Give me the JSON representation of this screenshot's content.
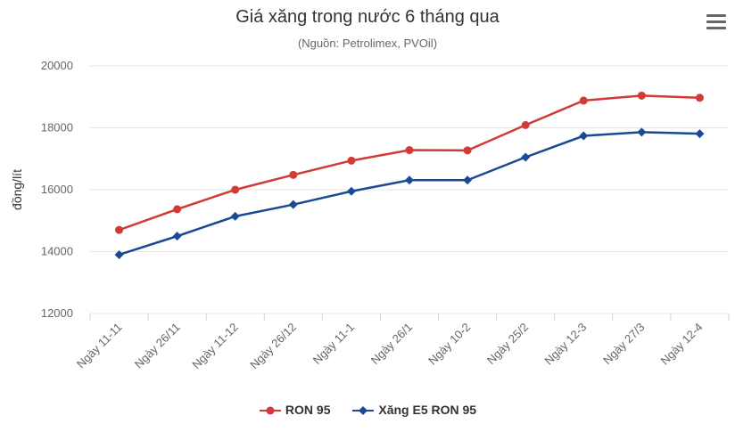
{
  "title": "Giá xăng trong nước 6 tháng qua",
  "subtitle": "(Nguồn: Petrolimex, PVOil)",
  "menu_icon": "hamburger-menu-icon",
  "colors": {
    "ron95": "#d03a37",
    "e5": "#1a4a95",
    "grid": "#e6e6e6",
    "axis_text": "#666666"
  },
  "chart_data": {
    "type": "line",
    "title": "Giá xăng trong nước 6 tháng qua",
    "subtitle": "(Nguồn: Petrolimex, PVOil)",
    "ylabel": "đồng/lít",
    "xlabel": "",
    "ylim": [
      12000,
      20000
    ],
    "yticks": [
      12000,
      14000,
      16000,
      18000,
      20000
    ],
    "grid": true,
    "legend_position": "bottom",
    "categories": [
      "Ngày 11-11",
      "Ngày 26/11",
      "Ngày 11-12",
      "Ngày 26/12",
      "Ngày 11-1",
      "Ngày 26/1",
      "Ngày 10-2",
      "Ngày 25/2",
      "Ngày 12-3",
      "Ngày 27/3",
      "Ngày 12-4"
    ],
    "series": [
      {
        "name": "RON 95",
        "marker": "circle",
        "values": [
          14700,
          15370,
          16000,
          16480,
          16940,
          17280,
          17270,
          18090,
          18880,
          19040,
          18970
        ]
      },
      {
        "name": "Xăng E5 RON 95",
        "marker": "diamond",
        "values": [
          13900,
          14500,
          15140,
          15520,
          15950,
          16310,
          16310,
          17050,
          17740,
          17860,
          17810
        ]
      }
    ]
  }
}
